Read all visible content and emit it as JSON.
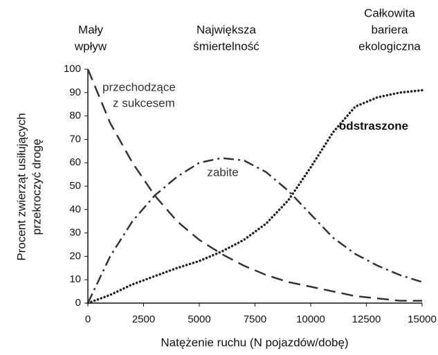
{
  "chart_data": {
    "type": "line",
    "annotations": [
      [
        "Mały",
        "wpływ"
      ],
      [
        "Największa",
        "śmiertelność"
      ],
      [
        "Całkowita",
        "bariera",
        "ekologiczna"
      ]
    ],
    "x_label": "Natężenie ruchu (N pojazdów/dobę)",
    "y_label": [
      "Procent zwierząt usiłujących",
      "przekroczyć drogę"
    ],
    "x": [
      0,
      1000,
      2000,
      3000,
      4000,
      5000,
      6000,
      7000,
      8000,
      9000,
      10000,
      11000,
      12000,
      13000,
      14000,
      15000
    ],
    "series": [
      {
        "name": [
          "przechodzące",
          "z sukcesem"
        ],
        "color": "#333333",
        "style": "dashed",
        "values": [
          100,
          77,
          60,
          46,
          35,
          27,
          21,
          16,
          12,
          9,
          7,
          5,
          3,
          2,
          1,
          1
        ]
      },
      {
        "name": [
          "zabite"
        ],
        "color": "#333333",
        "style": "dashdot",
        "values": [
          0,
          20,
          35,
          46,
          54,
          60,
          62,
          61,
          56,
          48,
          38,
          28,
          21,
          16,
          12,
          9
        ]
      },
      {
        "name": [
          "odstraszone"
        ],
        "color": "#222222",
        "style": "dotted",
        "values": [
          0,
          3.5,
          8,
          11.5,
          15,
          18,
          22,
          27,
          34,
          44,
          58,
          73,
          84,
          88,
          90,
          91
        ]
      }
    ],
    "xlim": [
      0,
      15000
    ],
    "xticks": [
      0,
      2500,
      5000,
      7500,
      10000,
      12500,
      15000
    ],
    "ylim": [
      0,
      100
    ],
    "yticks": [
      0,
      10,
      20,
      30,
      40,
      50,
      60,
      70,
      80,
      90,
      100
    ],
    "grid": false
  }
}
